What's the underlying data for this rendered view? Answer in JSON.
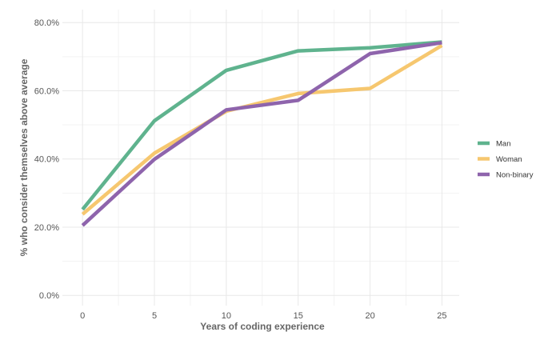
{
  "chart_data": {
    "type": "line",
    "x": [
      0,
      5,
      10,
      15,
      20,
      25
    ],
    "xticks": [
      0,
      5,
      10,
      15,
      20,
      25
    ],
    "xtick_labels": [
      "0",
      "5",
      "10",
      "15",
      "20",
      "25"
    ],
    "xlim": [
      -1.4,
      26.2
    ],
    "ylim": [
      -3,
      83.8
    ],
    "yticks": [
      0,
      20,
      40,
      60,
      80
    ],
    "ytick_labels": [
      "0.0%",
      "20.0%",
      "40.0%",
      "60.0%",
      "80.0%"
    ],
    "xlabel": "Years of coding experience",
    "ylabel": "% who consider themselves above average",
    "grid": true,
    "legend_position": "right",
    "series": [
      {
        "name": "Man",
        "color": "#5fb38e",
        "values": [
          25.2,
          51.2,
          66.0,
          71.7,
          72.6,
          74.3
        ]
      },
      {
        "name": "Woman",
        "color": "#f6c76f",
        "values": [
          23.8,
          41.7,
          54.0,
          59.2,
          60.7,
          73.3
        ]
      },
      {
        "name": "Non-binary",
        "color": "#8e64ac",
        "values": [
          20.5,
          39.9,
          54.4,
          57.2,
          70.9,
          74.1
        ]
      }
    ]
  }
}
